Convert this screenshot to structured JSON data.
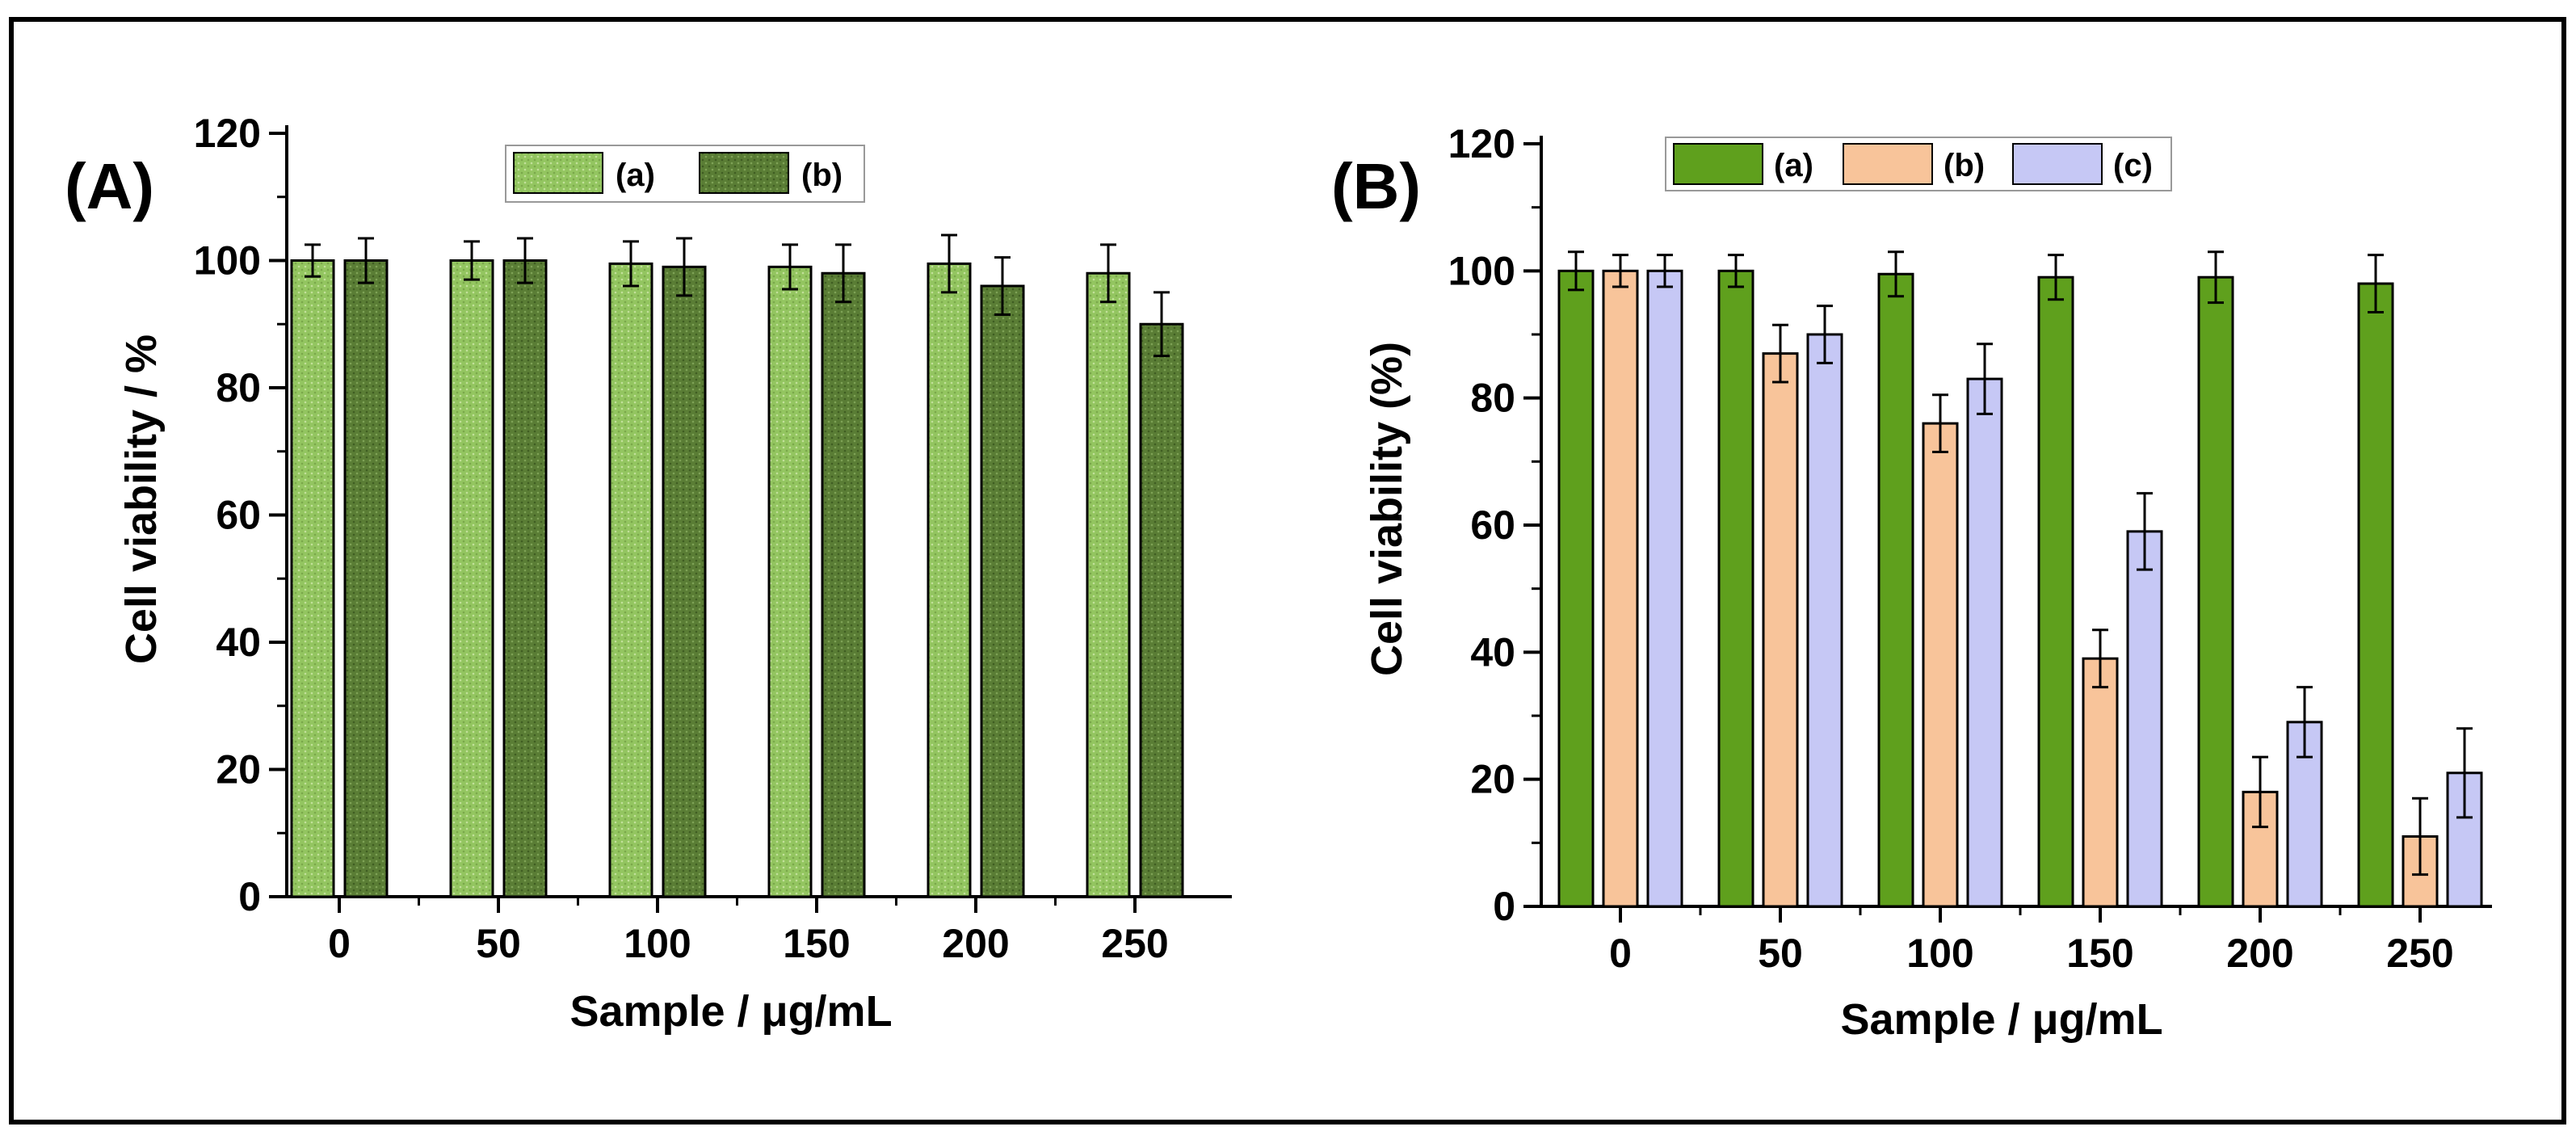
{
  "colors": {
    "A_a": "#93c560",
    "A_b": "#5a7d35",
    "B_a": "#5fa01d",
    "B_b": "#f8c49a",
    "B_c": "#c6c8f5"
  },
  "chart_data": [
    {
      "type": "bar",
      "panel_label": "(A)",
      "title": "",
      "xlabel": "Sample / μg/mL",
      "ylabel": "Cell viability / %",
      "categories": [
        "0",
        "50",
        "100",
        "150",
        "200",
        "250"
      ],
      "ylim": [
        0,
        120
      ],
      "yticks": [
        "0",
        "20",
        "40",
        "60",
        "80",
        "100",
        "120"
      ],
      "legend_position": "top-center",
      "series": [
        {
          "name": "(a)",
          "color": "#93c560",
          "pattern": "dotted",
          "values": [
            100,
            100,
            99.5,
            99,
            99.5,
            98
          ],
          "errors": [
            2.5,
            3,
            3.5,
            3.5,
            4.5,
            4.5
          ]
        },
        {
          "name": "(b)",
          "color": "#5a7d35",
          "pattern": "dotted",
          "values": [
            100,
            100,
            99,
            98,
            96,
            90
          ],
          "errors": [
            3.5,
            3.5,
            4.5,
            4.5,
            4.5,
            5
          ]
        }
      ]
    },
    {
      "type": "bar",
      "panel_label": "(B)",
      "title": "",
      "xlabel": "Sample / μg/mL",
      "ylabel": "Cell viability (%)",
      "categories": [
        "0",
        "50",
        "100",
        "150",
        "200",
        "250"
      ],
      "ylim": [
        0,
        120
      ],
      "yticks": [
        "0",
        "20",
        "40",
        "60",
        "80",
        "100",
        "120"
      ],
      "legend_position": "top-center",
      "series": [
        {
          "name": "(a)",
          "color": "#5fa01d",
          "pattern": "solid",
          "values": [
            100,
            100,
            99.5,
            99,
            99,
            98
          ],
          "errors": [
            3,
            2.5,
            3.5,
            3.5,
            4,
            4.5
          ]
        },
        {
          "name": "(b)",
          "color": "#f8c49a",
          "pattern": "solid",
          "values": [
            100,
            87,
            76,
            39,
            18,
            11
          ],
          "errors": [
            2.5,
            4.5,
            4.5,
            4.5,
            5.5,
            6
          ]
        },
        {
          "name": "(c)",
          "color": "#c6c8f5",
          "pattern": "solid",
          "values": [
            100,
            90,
            83,
            59,
            29,
            21
          ],
          "errors": [
            2.5,
            4.5,
            5.5,
            6,
            5.5,
            7
          ]
        }
      ]
    }
  ]
}
